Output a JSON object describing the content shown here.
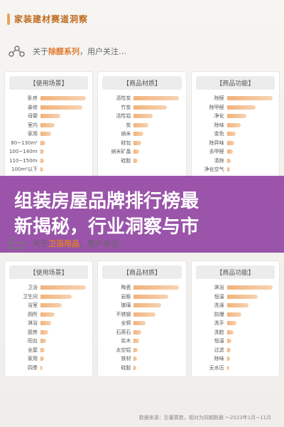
{
  "header": {
    "title": "家装建材赛道洞察"
  },
  "section1": {
    "prefix": "关于",
    "highlight": "除醛系列",
    "suffix": "，用户关注…",
    "icon": "molecule-icon",
    "cards": [
      {
        "title": "【使用场景】",
        "items": [
          {
            "label": "卧房",
            "value": 95
          },
          {
            "label": "装修",
            "value": 88
          },
          {
            "label": "母婴",
            "value": 42
          },
          {
            "label": "室内",
            "value": 30
          },
          {
            "label": "家用",
            "value": 22
          },
          {
            "label": "80~130m²",
            "value": 10
          },
          {
            "label": "100~140m²",
            "value": 8
          },
          {
            "label": "110~150m²",
            "value": 7
          },
          {
            "label": "100m²以下",
            "value": 6
          }
        ]
      },
      {
        "title": "【商品材质】",
        "items": [
          {
            "label": "活性炭",
            "value": 95
          },
          {
            "label": "竹炭",
            "value": 70
          },
          {
            "label": "活性铝",
            "value": 40
          },
          {
            "label": "炭",
            "value": 30
          },
          {
            "label": "纳米",
            "value": 20
          },
          {
            "label": "硅包",
            "value": 16
          },
          {
            "label": "纳米矿晶",
            "value": 12
          },
          {
            "label": "硅胶",
            "value": 9
          }
        ]
      },
      {
        "title": "【商品功能】",
        "items": [
          {
            "label": "除醛",
            "value": 95
          },
          {
            "label": "除甲醛",
            "value": 60
          },
          {
            "label": "净化",
            "value": 40
          },
          {
            "label": "除味",
            "value": 28
          },
          {
            "label": "变色",
            "value": 18
          },
          {
            "label": "除异味",
            "value": 15
          },
          {
            "label": "去甲醛",
            "value": 12
          },
          {
            "label": "清除",
            "value": 8
          },
          {
            "label": "净化空气",
            "value": 6
          }
        ]
      }
    ]
  },
  "section2": {
    "prefix": "关于",
    "highlight": "卫浴用品",
    "suffix": "，用户关注…",
    "icon": "bathtub-icon",
    "cards": [
      {
        "title": "【使用场景】",
        "items": [
          {
            "label": "卫浴",
            "value": 95
          },
          {
            "label": "卫生间",
            "value": 65
          },
          {
            "label": "浴室",
            "value": 45
          },
          {
            "label": "厕所",
            "value": 30
          },
          {
            "label": "淋浴",
            "value": 22
          },
          {
            "label": "厨房",
            "value": 16
          },
          {
            "label": "阳台",
            "value": 12
          },
          {
            "label": "全屋",
            "value": 9
          },
          {
            "label": "家用",
            "value": 7
          },
          {
            "label": "四季",
            "value": 5
          }
        ]
      },
      {
        "title": "【商品材质】",
        "items": [
          {
            "label": "陶瓷",
            "value": 95
          },
          {
            "label": "岩板",
            "value": 72
          },
          {
            "label": "玻璃",
            "value": 58
          },
          {
            "label": "不锈钢",
            "value": 45
          },
          {
            "label": "全铜",
            "value": 25
          },
          {
            "label": "石英石",
            "value": 16
          },
          {
            "label": "实木",
            "value": 12
          },
          {
            "label": "太空铝",
            "value": 9
          },
          {
            "label": "铁材",
            "value": 7
          },
          {
            "label": "硅胶",
            "value": 5
          }
        ]
      },
      {
        "title": "【商品功能】",
        "items": [
          {
            "label": "淋浴",
            "value": 95
          },
          {
            "label": "恒温",
            "value": 65
          },
          {
            "label": "洗澡",
            "value": 45
          },
          {
            "label": "防爆",
            "value": 30
          },
          {
            "label": "洗手",
            "value": 20
          },
          {
            "label": "洗脸",
            "value": 14
          },
          {
            "label": "恒温",
            "value": 10
          },
          {
            "label": "过滤",
            "value": 8
          },
          {
            "label": "除味",
            "value": 6
          },
          {
            "label": "无水压",
            "value": 5
          }
        ]
      }
    ]
  },
  "banner": {
    "line1": "组装房屋品牌排行榜最",
    "line2": "新揭秘，行业洞察与市"
  },
  "footnote1": "数据来源：巨量算数，相对为同期数据 ～2023年1月~11月",
  "footnote2": "数据来源：巨量算数，相对为同期数据 ～2023年1月~11月",
  "colors": {
    "accent": "#e07b2f",
    "bar_start": "#f2b27a",
    "bar_end": "#f6d3b3",
    "banner": "#822896"
  }
}
